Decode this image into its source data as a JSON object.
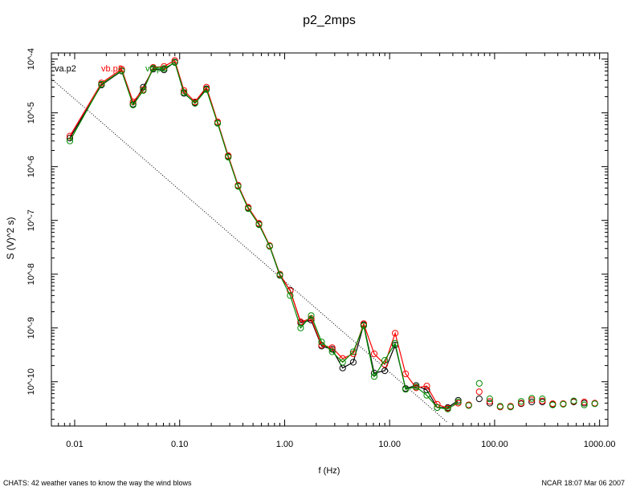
{
  "chart_data": {
    "type": "line",
    "title": "p2_2mps",
    "xlabel": "f (Hz)",
    "ylabel": "S (V)^2 s)",
    "xscale": "log",
    "yscale": "log",
    "xlim": [
      0.006,
      1200
    ],
    "ylim": [
      1.5e-11,
      0.00013
    ],
    "x_ticks": [
      0.01,
      0.1,
      1,
      10,
      100,
      1000
    ],
    "x_tick_labels": [
      "0.01",
      "0.10",
      "1.00",
      "10.00",
      "100.00",
      "1000.00"
    ],
    "y_ticks": [
      1e-10,
      1e-09,
      1e-08,
      1e-07,
      1e-06,
      1e-05,
      0.0001
    ],
    "y_tick_labels": [
      "10^-10",
      "10^-9",
      "10^-8",
      "10^-7",
      "10^-6",
      "10^-5",
      "10^-4"
    ],
    "legend": [
      "va.p2",
      "vb.p2",
      "vc.p2"
    ],
    "x": [
      0.009,
      0.018,
      0.028,
      0.036,
      0.045,
      0.056,
      0.071,
      0.09,
      0.11,
      0.14,
      0.18,
      0.23,
      0.29,
      0.36,
      0.45,
      0.57,
      0.72,
      0.9,
      1.13,
      1.42,
      1.79,
      2.25,
      2.84,
      3.57,
      4.5,
      5.66,
      7.13,
      8.98,
      11.3,
      14.2,
      17.9,
      22.6,
      28.4,
      35.8,
      45.0,
      56.7,
      71.4,
      89.9,
      113,
      142,
      179,
      226,
      285,
      358,
      451,
      568,
      715,
      900
    ],
    "series": [
      {
        "name": "va.p2",
        "color": "#000000",
        "values": [
          3.4e-06,
          3.3e-05,
          6e-05,
          1.45e-05,
          3e-05,
          6.5e-05,
          6.3e-05,
          8.8e-05,
          2.3e-05,
          1.55e-05,
          2.8e-05,
          6.5e-06,
          1.55e-06,
          4.4e-07,
          1.7e-07,
          8.5e-08,
          3.3e-08,
          9.5e-09,
          5e-09,
          1.25e-09,
          1.4e-09,
          4.6e-10,
          4e-10,
          1.8e-10,
          2.3e-10,
          1.15e-09,
          1.45e-10,
          1.6e-10,
          4.8e-10,
          7.5e-11,
          8.5e-11,
          7e-11,
          3.3e-11,
          3.3e-11,
          4.5e-11,
          3.7e-11,
          4.8e-11,
          4e-11,
          3.4e-11,
          3.4e-11,
          3.9e-11,
          4.2e-11,
          4.2e-11,
          3.8e-11,
          3.9e-11,
          4.2e-11,
          4e-11,
          3.9e-11
        ]
      },
      {
        "name": "vb.p2",
        "color": "#ff0000",
        "values": [
          3.7e-06,
          3.6e-05,
          6.5e-05,
          1.6e-05,
          2.7e-05,
          7e-05,
          7.3e-05,
          9.4e-05,
          2.6e-05,
          1.6e-05,
          3e-05,
          6.8e-06,
          1.6e-06,
          4.5e-07,
          1.75e-07,
          8.8e-08,
          3.4e-08,
          1e-08,
          4.9e-09,
          1.3e-09,
          1.5e-09,
          4.8e-10,
          4.3e-10,
          2.7e-10,
          3.3e-10,
          1.2e-09,
          3.3e-10,
          2.1e-10,
          8e-10,
          1.4e-10,
          7.7e-11,
          8.3e-11,
          3.8e-11,
          3.2e-11,
          4e-11,
          3.7e-11,
          6.5e-11,
          4.3e-11,
          3.4e-11,
          3.5e-11,
          4e-11,
          4.6e-11,
          4.4e-11,
          3.9e-11,
          3.9e-11,
          4.3e-11,
          4.2e-11,
          4e-11
        ]
      },
      {
        "name": "vc.p2",
        "color": "#008c00",
        "values": [
          3e-06,
          3.4e-05,
          6.1e-05,
          1.4e-05,
          2.6e-05,
          6.8e-05,
          6.7e-05,
          8.6e-05,
          2.4e-05,
          1.5e-05,
          2.7e-05,
          6.4e-06,
          1.5e-06,
          4.3e-07,
          1.65e-07,
          8.3e-08,
          3.3e-08,
          9.7e-09,
          4e-09,
          1e-09,
          1.7e-09,
          5.5e-10,
          3.6e-10,
          2.3e-10,
          3.6e-10,
          1.1e-09,
          1.25e-10,
          2.5e-10,
          5.2e-10,
          7.2e-11,
          8e-11,
          5.6e-11,
          3.3e-11,
          3.1e-11,
          4.2e-11,
          3.6e-11,
          9.3e-11,
          4.8e-11,
          3.5e-11,
          3.4e-11,
          4.3e-11,
          4.9e-11,
          4.8e-11,
          3.7e-11,
          3.8e-11,
          4.4e-11,
          3.7e-11,
          3.9e-11
        ]
      }
    ],
    "reference_line": {
      "style": "dotted",
      "from": [
        0.006,
        4.3e-05
      ],
      "to": [
        35,
        1.8e-11
      ]
    }
  },
  "footer": {
    "left": "CHATS: 42 weather vanes to know the way the wind blows",
    "right": "NCAR 18:07 Mar 06 2007"
  }
}
